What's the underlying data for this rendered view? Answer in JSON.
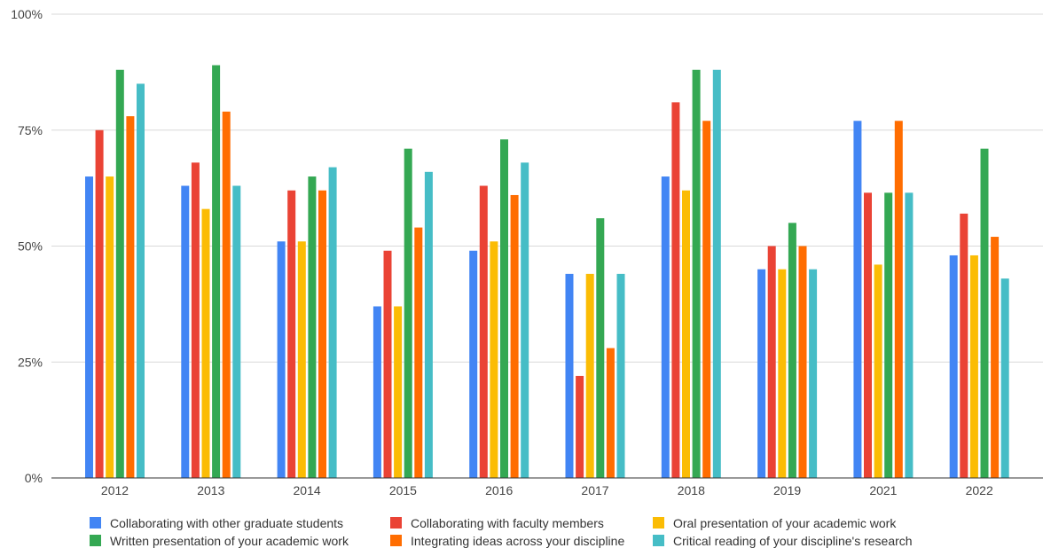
{
  "chart_data": {
    "type": "bar",
    "title": "",
    "xlabel": "",
    "ylabel": "",
    "ylim": [
      0,
      100
    ],
    "y_ticks": [
      0,
      25,
      50,
      75,
      100
    ],
    "y_tick_labels": [
      "0%",
      "25%",
      "50%",
      "75%",
      "100%"
    ],
    "grid": true,
    "legend_position": "bottom",
    "categories": [
      "2012",
      "2013",
      "2014",
      "2015",
      "2016",
      "2017",
      "2018",
      "2019",
      "2021",
      "2022"
    ],
    "series": [
      {
        "name": "Collaborating with other graduate students",
        "color": "#4285F4",
        "values": [
          65,
          63,
          51,
          37,
          49,
          44,
          65,
          45,
          77,
          48
        ]
      },
      {
        "name": "Collaborating with faculty members",
        "color": "#EA4335",
        "values": [
          75,
          68,
          62,
          49,
          63,
          22,
          81,
          50,
          61.5,
          57
        ]
      },
      {
        "name": "Oral presentation of your academic work",
        "color": "#FBBC04",
        "values": [
          65,
          58,
          51,
          37,
          51,
          44,
          62,
          45,
          46,
          48
        ]
      },
      {
        "name": "Written presentation of your academic work",
        "color": "#34A853",
        "values": [
          88,
          89,
          65,
          71,
          73,
          56,
          88,
          55,
          61.5,
          71
        ]
      },
      {
        "name": "Integrating ideas across your discipline",
        "color": "#FF6D01",
        "values": [
          78,
          79,
          62,
          54,
          61,
          28,
          77,
          50,
          77,
          52
        ]
      },
      {
        "name": "Critical reading of your discipline's research",
        "color": "#46BDC6",
        "values": [
          85,
          63,
          67,
          66,
          68,
          44,
          88,
          45,
          61.5,
          43
        ]
      }
    ]
  }
}
